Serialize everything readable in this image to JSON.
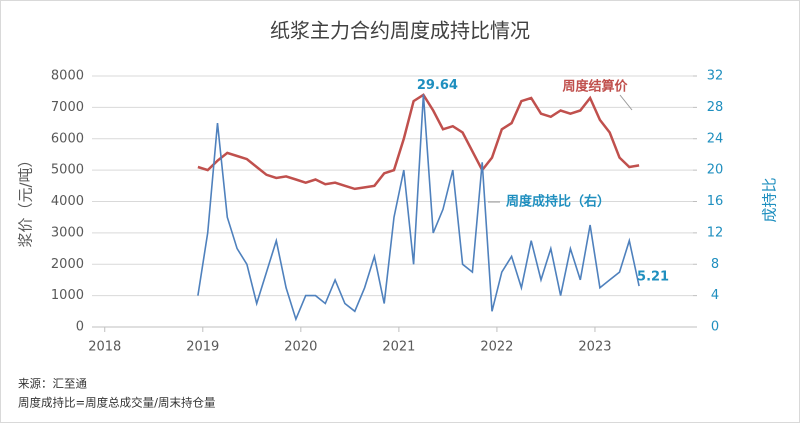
{
  "chart_data": {
    "type": "line",
    "title": "纸浆主力合约周度成持比情况",
    "y_label": "浆价（元/吨）",
    "y2_label": "成持比",
    "x": [
      2018.95,
      2019.05,
      2019.15,
      2019.25,
      2019.35,
      2019.45,
      2019.55,
      2019.65,
      2019.75,
      2019.85,
      2019.95,
      2020.05,
      2020.15,
      2020.25,
      2020.35,
      2020.45,
      2020.55,
      2020.65,
      2020.75,
      2020.85,
      2020.95,
      2021.05,
      2021.15,
      2021.25,
      2021.35,
      2021.45,
      2021.55,
      2021.65,
      2021.75,
      2021.85,
      2021.95,
      2022.05,
      2022.15,
      2022.25,
      2022.35,
      2022.45,
      2022.55,
      2022.65,
      2022.75,
      2022.85,
      2022.95,
      2023.05,
      2023.15,
      2023.25,
      2023.35,
      2023.45
    ],
    "xlim": [
      2017.87,
      2024
    ],
    "xticks": [
      2018,
      2019,
      2020,
      2021,
      2022,
      2023
    ],
    "ylim": [
      0,
      8000
    ],
    "yticks": [
      0,
      1000,
      2000,
      3000,
      4000,
      5000,
      6000,
      7000,
      8000
    ],
    "y2lim": [
      0,
      32
    ],
    "y2ticks": [
      0,
      4,
      8,
      12,
      16,
      20,
      24,
      28,
      32
    ],
    "series": [
      {
        "name": "周度结算价",
        "color": "#c0504d",
        "values": [
          5100,
          5000,
          5300,
          5550,
          5450,
          5350,
          5100,
          4850,
          4750,
          4800,
          4700,
          4600,
          4700,
          4550,
          4600,
          4500,
          4400,
          4450,
          4500,
          4900,
          5000,
          6000,
          7200,
          7400,
          6900,
          6300,
          6400,
          6200,
          5600,
          5000,
          5400,
          6300,
          6500,
          7200,
          7300,
          6800,
          6700,
          6900,
          6800,
          6900,
          7300,
          6600,
          6200,
          5400,
          5100,
          5150
        ]
      },
      {
        "name": "周度成持比（右）",
        "color": "#4f81bd",
        "axis": "y2",
        "values": [
          4,
          12,
          26,
          14,
          10,
          8,
          3,
          7,
          11,
          5,
          1,
          4,
          4,
          3,
          6,
          3,
          2,
          5,
          9,
          3,
          14,
          20,
          8,
          29.64,
          12,
          15,
          20,
          8,
          7,
          21,
          2,
          7,
          9,
          5,
          11,
          6,
          10,
          4,
          10,
          6,
          13,
          5,
          6,
          7,
          11,
          5.21
        ],
        "value_labels": [
          null,
          null,
          null,
          null,
          null,
          null,
          null,
          null,
          null,
          null,
          null,
          null,
          null,
          null,
          null,
          null,
          null,
          null,
          null,
          null,
          null,
          null,
          null,
          "29.64",
          null,
          null,
          null,
          null,
          null,
          null,
          null,
          null,
          null,
          null,
          null,
          null,
          null,
          null,
          null,
          null,
          null,
          null,
          null,
          null,
          null,
          "5.21"
        ]
      }
    ],
    "notes": [
      "来源：汇至通",
      "周度成持比=周度总成交量/周末持仓量"
    ]
  }
}
